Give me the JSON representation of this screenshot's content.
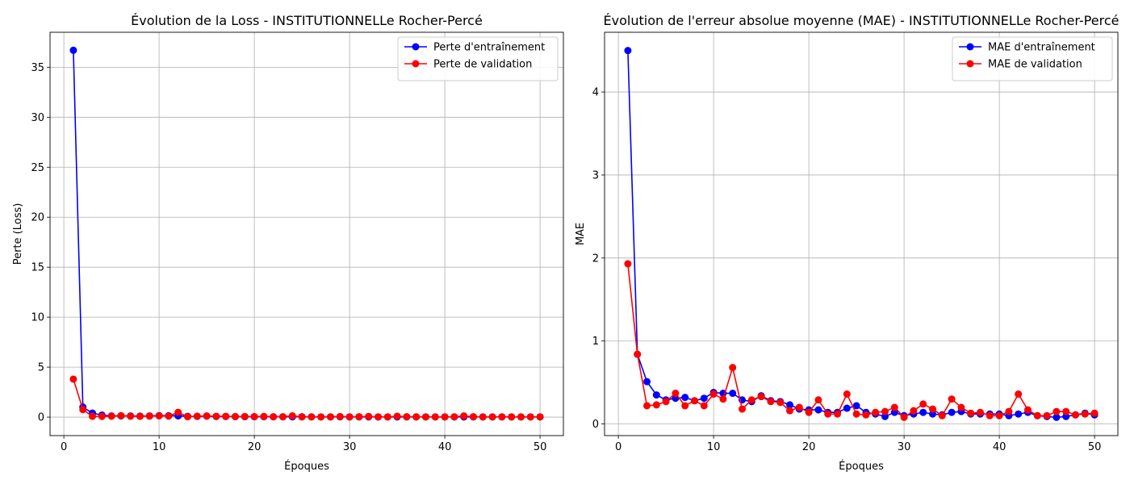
{
  "chart_data": [
    {
      "type": "line",
      "title": "Évolution de la Loss - INSTITUTIONNELLe Rocher-Percé",
      "xlabel": "Époques",
      "ylabel": "Perte (Loss)",
      "xlim": [
        -1.45,
        52.45
      ],
      "ylim": [
        -1.85,
        38.5
      ],
      "xticks": [
        0,
        10,
        20,
        30,
        40,
        50
      ],
      "yticks": [
        0,
        5,
        10,
        15,
        20,
        25,
        30,
        35
      ],
      "grid": true,
      "legend_position": "upper right",
      "x": [
        1,
        2,
        3,
        4,
        5,
        6,
        7,
        8,
        9,
        10,
        11,
        12,
        13,
        14,
        15,
        16,
        17,
        18,
        19,
        20,
        21,
        22,
        23,
        24,
        25,
        26,
        27,
        28,
        29,
        30,
        31,
        32,
        33,
        34,
        35,
        36,
        37,
        38,
        39,
        40,
        41,
        42,
        43,
        44,
        45,
        46,
        47,
        48,
        49,
        50
      ],
      "series": [
        {
          "name": "Perte d'entraînement",
          "color": "#0000ff",
          "values": [
            36.7,
            1.0,
            0.4,
            0.2,
            0.12,
            0.12,
            0.12,
            0.1,
            0.12,
            0.15,
            0.14,
            0.12,
            0.08,
            0.07,
            0.1,
            0.06,
            0.06,
            0.05,
            0.04,
            0.04,
            0.04,
            0.03,
            0.03,
            0.03,
            0.04,
            0.03,
            0.02,
            0.02,
            0.03,
            0.02,
            0.02,
            0.02,
            0.02,
            0.02,
            0.02,
            0.02,
            0.02,
            0.02,
            0.02,
            0.02,
            0.02,
            0.02,
            0.02,
            0.02,
            0.02,
            0.02,
            0.02,
            0.02,
            0.02,
            0.02
          ]
        },
        {
          "name": "Perte de validation",
          "color": "#ff0000",
          "values": [
            3.8,
            0.75,
            0.08,
            0.07,
            0.09,
            0.15,
            0.09,
            0.08,
            0.1,
            0.13,
            0.1,
            0.48,
            0.04,
            0.09,
            0.12,
            0.08,
            0.08,
            0.05,
            0.06,
            0.05,
            0.07,
            0.04,
            0.04,
            0.13,
            0.02,
            0.02,
            0.02,
            0.03,
            0.06,
            0.02,
            0.04,
            0.07,
            0.02,
            0.02,
            0.09,
            0.04,
            0.03,
            0.02,
            0.02,
            0.02,
            0.03,
            0.12,
            0.04,
            0.02,
            0.02,
            0.03,
            0.02,
            0.02,
            0.02,
            0.02
          ]
        }
      ]
    },
    {
      "type": "line",
      "title": "Évolution de l'erreur absolue moyenne (MAE) - INSTITUTIONNELLe Rocher-Percé",
      "xlabel": "Époques",
      "ylabel": "MAE",
      "xlim": [
        -1.45,
        52.45
      ],
      "ylim": [
        -0.14,
        4.72
      ],
      "xticks": [
        0,
        10,
        20,
        30,
        40,
        50
      ],
      "yticks": [
        0,
        1,
        2,
        3,
        4
      ],
      "grid": true,
      "legend_position": "upper right",
      "x": [
        1,
        2,
        3,
        4,
        5,
        6,
        7,
        8,
        9,
        10,
        11,
        12,
        13,
        14,
        15,
        16,
        17,
        18,
        19,
        20,
        21,
        22,
        23,
        24,
        25,
        26,
        27,
        28,
        29,
        30,
        31,
        32,
        33,
        34,
        35,
        36,
        37,
        38,
        39,
        40,
        41,
        42,
        43,
        44,
        45,
        46,
        47,
        48,
        49,
        50
      ],
      "series": [
        {
          "name": "MAE d'entraînement",
          "color": "#0000ff",
          "values": [
            4.5,
            0.84,
            0.51,
            0.35,
            0.29,
            0.31,
            0.32,
            0.28,
            0.31,
            0.38,
            0.37,
            0.37,
            0.29,
            0.27,
            0.34,
            0.28,
            0.27,
            0.23,
            0.18,
            0.17,
            0.17,
            0.14,
            0.14,
            0.19,
            0.22,
            0.14,
            0.12,
            0.09,
            0.14,
            0.1,
            0.12,
            0.14,
            0.12,
            0.11,
            0.14,
            0.15,
            0.12,
            0.12,
            0.12,
            0.12,
            0.1,
            0.12,
            0.14,
            0.1,
            0.09,
            0.08,
            0.09,
            0.11,
            0.13,
            0.11
          ]
        },
        {
          "name": "MAE de validation",
          "color": "#ff0000",
          "values": [
            1.93,
            0.84,
            0.22,
            0.23,
            0.27,
            0.37,
            0.22,
            0.28,
            0.22,
            0.36,
            0.3,
            0.68,
            0.18,
            0.29,
            0.33,
            0.27,
            0.26,
            0.16,
            0.2,
            0.14,
            0.29,
            0.12,
            0.12,
            0.36,
            0.12,
            0.11,
            0.14,
            0.15,
            0.2,
            0.08,
            0.16,
            0.24,
            0.18,
            0.1,
            0.3,
            0.2,
            0.13,
            0.14,
            0.1,
            0.1,
            0.15,
            0.36,
            0.17,
            0.1,
            0.1,
            0.15,
            0.15,
            0.11,
            0.12,
            0.13
          ]
        }
      ]
    }
  ]
}
